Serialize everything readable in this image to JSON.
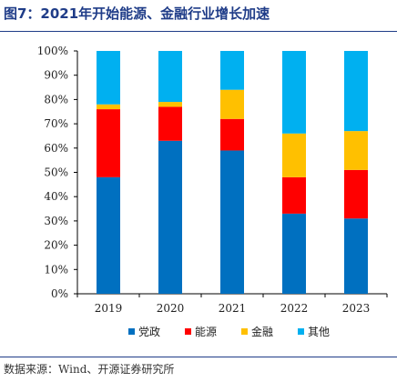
{
  "title": "图7：2021年开始能源、金融行业增长加速",
  "source": "数据来源：Wind、开源证券研究所",
  "chart_data": {
    "type": "bar",
    "stacked": true,
    "categories": [
      "2019",
      "2020",
      "2021",
      "2022",
      "2023"
    ],
    "series": [
      {
        "name": "党政",
        "color": "#0070c0",
        "values": [
          48,
          63,
          59,
          33,
          31
        ]
      },
      {
        "name": "能源",
        "color": "#ff0000",
        "values": [
          28,
          14,
          13,
          15,
          20
        ]
      },
      {
        "name": "金融",
        "color": "#ffc000",
        "values": [
          2,
          2,
          12,
          18,
          16
        ]
      },
      {
        "name": "其他",
        "color": "#00b0f0",
        "values": [
          22,
          21,
          16,
          34,
          33
        ]
      }
    ],
    "ylim": [
      0,
      100
    ],
    "yticks": [
      "0%",
      "10%",
      "20%",
      "30%",
      "40%",
      "50%",
      "60%",
      "70%",
      "80%",
      "90%",
      "100%"
    ],
    "grid": false,
    "legend_position": "bottom"
  }
}
